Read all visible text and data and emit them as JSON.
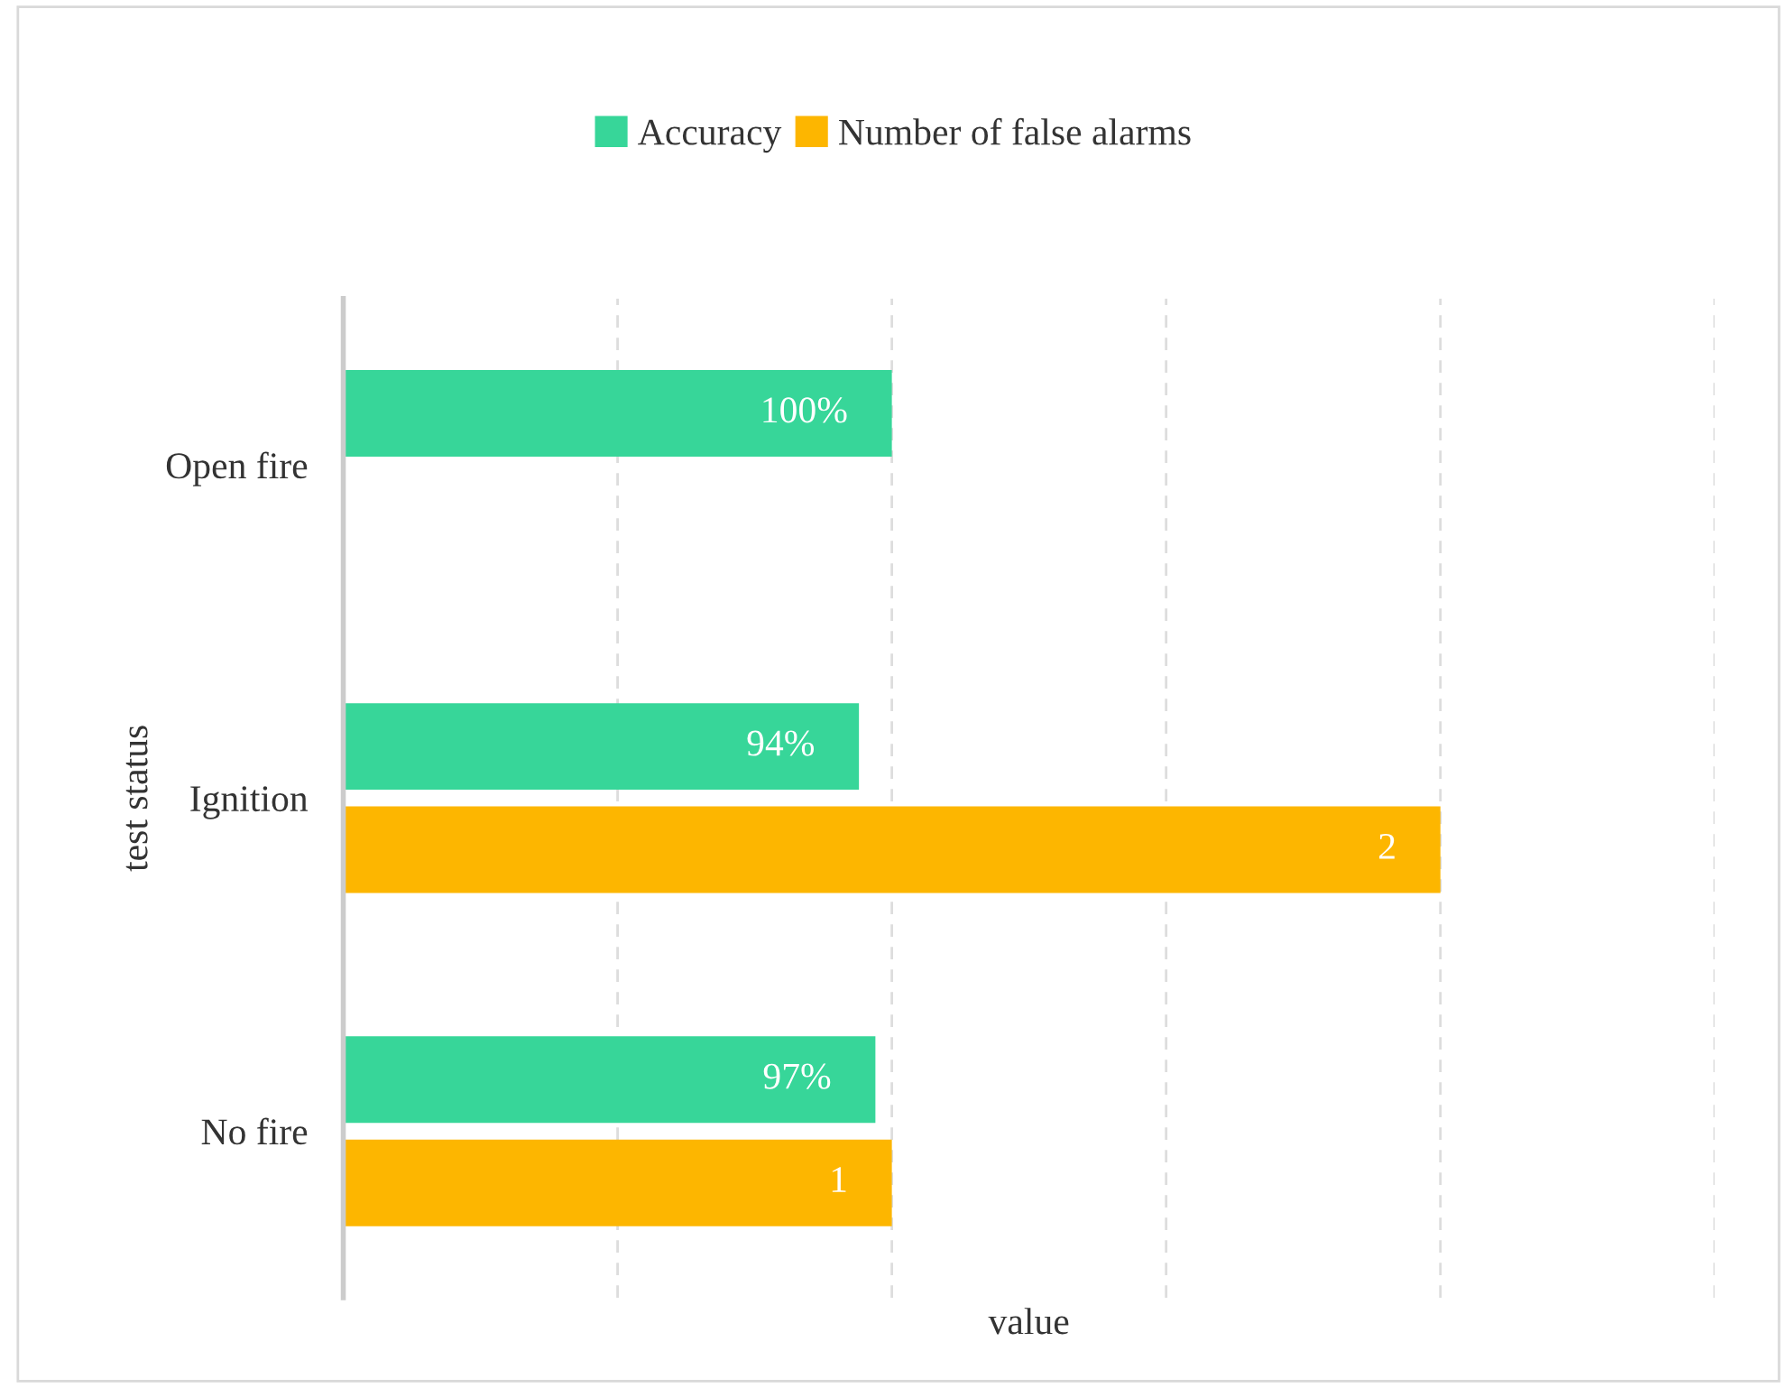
{
  "chart_data": {
    "type": "bar",
    "orientation": "horizontal",
    "xlabel": "value",
    "ylabel": "test status",
    "categories": [
      "Open fire",
      "Ignition",
      "No fire"
    ],
    "series": [
      {
        "name": "Accuracy",
        "color": "#37d699",
        "values": [
          1,
          0.94,
          0.97
        ],
        "value_labels": [
          "100%",
          "94%",
          "97%"
        ]
      },
      {
        "name": "Number of false alarms",
        "color": "#fdb600",
        "values": [
          null,
          2,
          1
        ],
        "value_labels": [
          null,
          "2",
          "1"
        ]
      }
    ],
    "xlim": [
      0,
      2.5
    ],
    "xticks": [
      {
        "value": 0,
        "label": null
      },
      {
        "value": 0.5,
        "label": null
      },
      {
        "value": 1,
        "label": null
      },
      {
        "value": 1.5,
        "label": null
      },
      {
        "value": 2,
        "label": null
      },
      {
        "value": 2.5,
        "label": null
      }
    ],
    "grid": "x",
    "legend": "top",
    "tick_labels": "y"
  }
}
